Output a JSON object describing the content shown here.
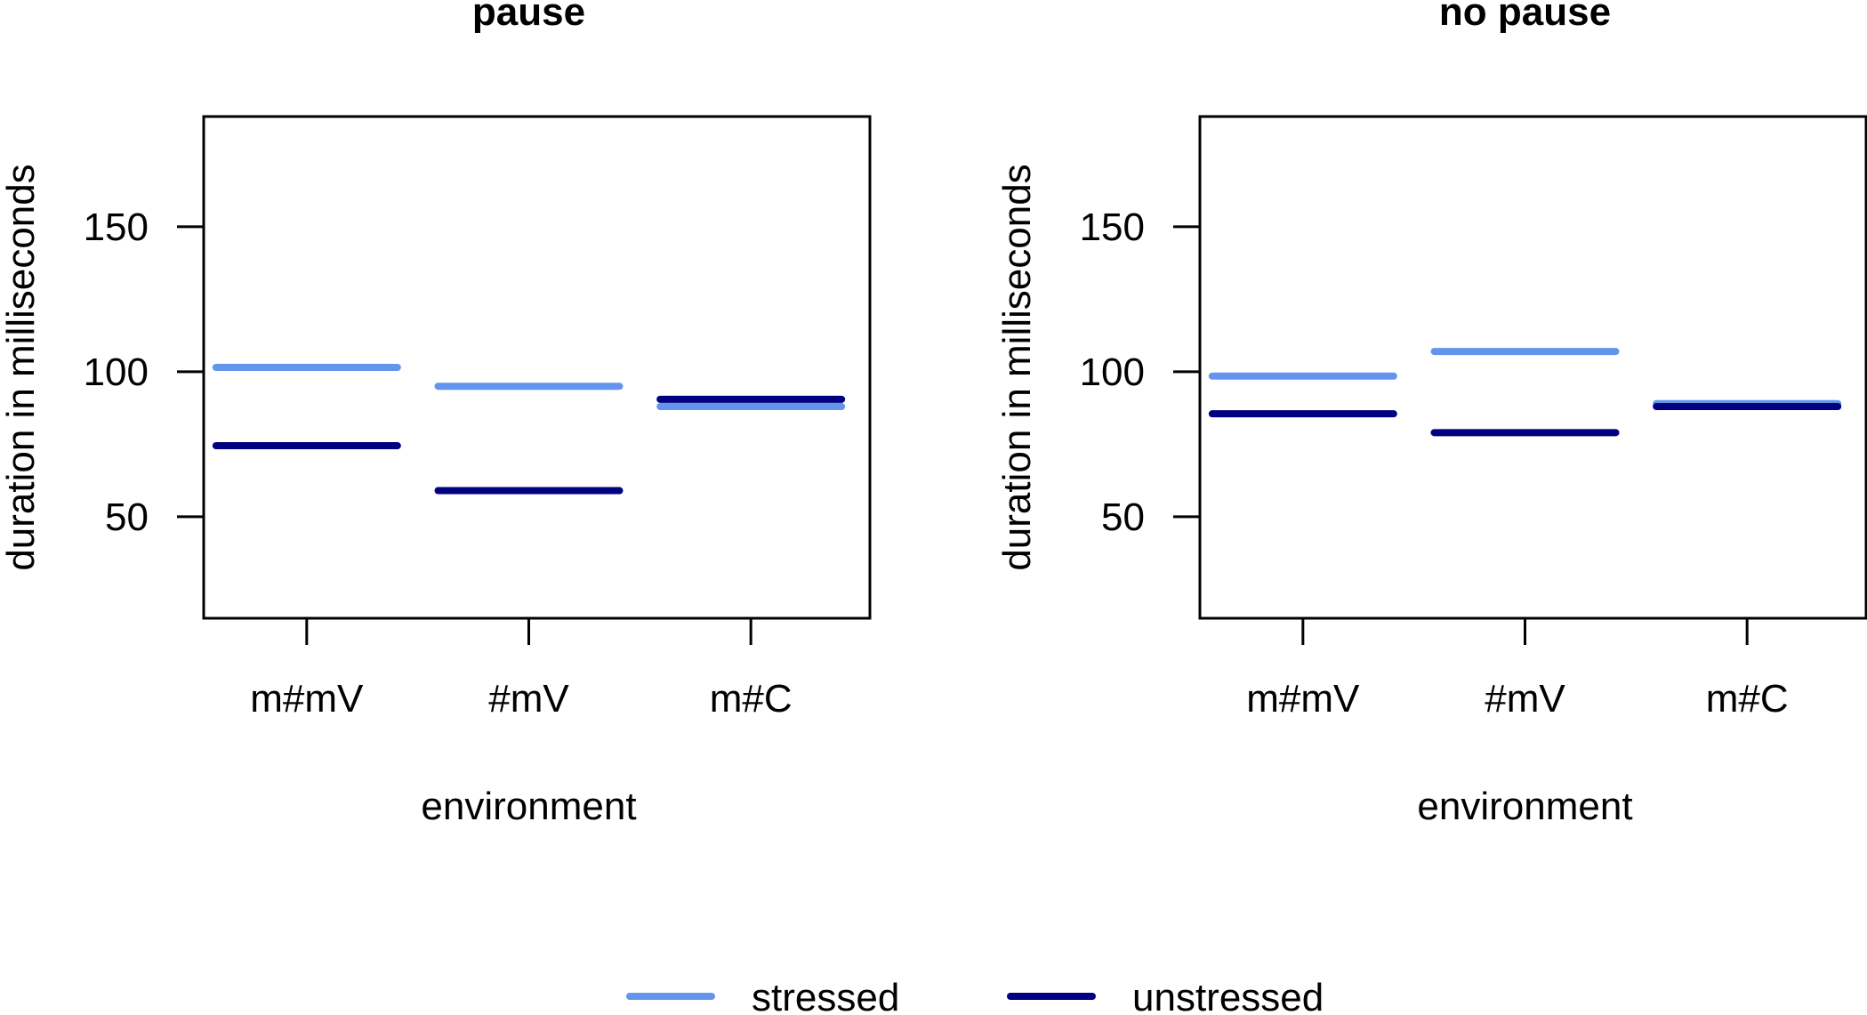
{
  "chart_data": [
    {
      "type": "line",
      "title": "pause",
      "xlabel": "environment",
      "ylabel": "duration in milliseconds",
      "categories": [
        "m#mV",
        "#mV",
        "m#C"
      ],
      "ylim": [
        15,
        188
      ],
      "yticks": [
        50,
        100,
        150
      ],
      "grid": false,
      "series": [
        {
          "name": "stressed",
          "values": [
            101.5,
            95,
            88
          ]
        },
        {
          "name": "unstressed",
          "values": [
            74.5,
            59,
            90.5
          ]
        }
      ]
    },
    {
      "type": "line",
      "title": "no pause",
      "xlabel": "environment",
      "ylabel": "duration in milliseconds",
      "categories": [
        "m#mV",
        "#mV",
        "m#C"
      ],
      "ylim": [
        15,
        188
      ],
      "yticks": [
        50,
        100,
        150
      ],
      "grid": false,
      "series": [
        {
          "name": "stressed",
          "values": [
            98.5,
            107,
            89
          ]
        },
        {
          "name": "unstressed",
          "values": [
            85.5,
            79,
            88
          ]
        }
      ]
    }
  ],
  "legend": {
    "placement": "bottom",
    "items": [
      {
        "label": "stressed",
        "color": "#6495ED"
      },
      {
        "label": "unstressed",
        "color": "#000080"
      }
    ]
  }
}
